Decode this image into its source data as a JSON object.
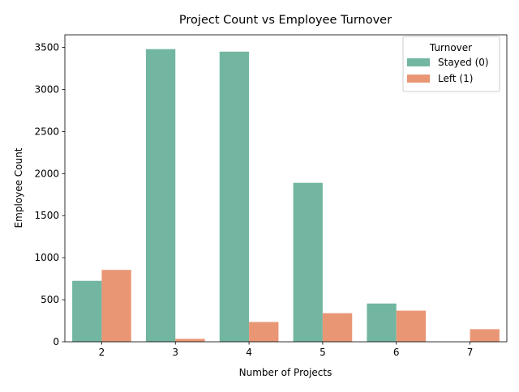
{
  "chart_data": {
    "type": "bar",
    "title": "Project Count vs Employee Turnover",
    "xlabel": "Number of Projects",
    "ylabel": "Employee Count",
    "categories": [
      "2",
      "3",
      "4",
      "5",
      "6",
      "7"
    ],
    "ylim": [
      0,
      3650
    ],
    "yticks": [
      0,
      500,
      1000,
      1500,
      2000,
      2500,
      3000,
      3500
    ],
    "grid": false,
    "legend": {
      "title": "Turnover",
      "placement": "top-right"
    },
    "series": [
      {
        "name": "Stayed (0)",
        "color": "#72b6a1",
        "values": [
          725,
          3480,
          3450,
          1890,
          455,
          0
        ]
      },
      {
        "name": "Left (1)",
        "color": "#e99675",
        "values": [
          855,
          35,
          235,
          340,
          370,
          150
        ]
      }
    ]
  }
}
